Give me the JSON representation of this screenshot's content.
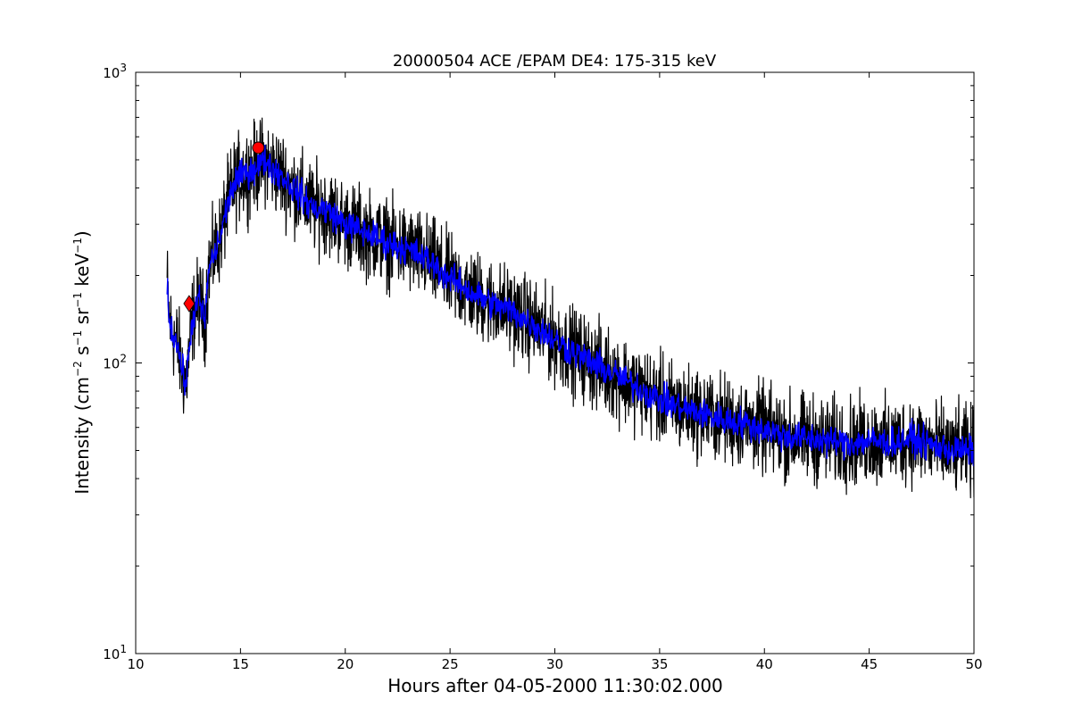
{
  "chart_data": {
    "type": "line",
    "title": "20000504 ACE /EPAM DE4: 175-315 keV",
    "xlabel": "Hours after 04-05-2000 11:30:02.000",
    "ylabel": {
      "prefix": "Intensity (cm",
      "exp1": "−2",
      "s": " s",
      "exp2": "−1",
      "sr": " sr",
      "exp3": "−1",
      "kev": " keV",
      "exp4": "−1",
      "suffix": ")"
    },
    "xlim": [
      10,
      50
    ],
    "ylim": [
      10,
      1000
    ],
    "yscale": "log",
    "grid": false,
    "x_ticks": [
      "10",
      "15",
      "20",
      "25",
      "30",
      "35",
      "40",
      "45",
      "50"
    ],
    "y_ticks": [
      {
        "base": "10",
        "exp": "1"
      },
      {
        "base": "10",
        "exp": "2"
      },
      {
        "base": "10",
        "exp": "3"
      }
    ],
    "series": [
      {
        "color": "#000000",
        "style": "raw, noisy",
        "x": [
          11.5,
          11.6,
          11.8,
          12.0,
          12.2,
          12.4,
          12.7,
          13.0,
          13.3,
          13.5,
          13.8,
          14.0,
          14.3,
          14.6,
          15.0,
          15.5,
          15.9,
          16.2,
          16.5,
          17.0,
          17.5,
          18.0,
          18.5,
          19.0,
          19.5,
          20.0,
          21.0,
          22.0,
          23.0,
          24.0,
          25.0,
          26.0,
          27.0,
          28.0,
          29.0,
          30.0,
          31.0,
          32.0,
          33.0,
          34.0,
          35.0,
          36.0,
          37.0,
          38.0,
          39.0,
          40.0,
          41.0,
          42.0,
          43.0,
          44.0,
          45.0,
          46.0,
          47.0,
          48.0,
          49.0,
          50.0
        ],
        "y": [
          190,
          140,
          125,
          115,
          95,
          85,
          140,
          165,
          140,
          215,
          240,
          265,
          330,
          400,
          440,
          460,
          480,
          500,
          470,
          440,
          400,
          370,
          340,
          340,
          320,
          300,
          280,
          260,
          245,
          225,
          195,
          175,
          160,
          150,
          135,
          120,
          108,
          98,
          90,
          82,
          75,
          70,
          67,
          64,
          62,
          59,
          56,
          55,
          54,
          53,
          54,
          53,
          55,
          52,
          50,
          50
        ],
        "noise": 0.17
      },
      {
        "color": "#0000ff",
        "style": "smoothed",
        "x": [
          11.5,
          11.6,
          11.8,
          12.0,
          12.2,
          12.4,
          12.7,
          13.0,
          13.3,
          13.5,
          13.8,
          14.0,
          14.3,
          14.6,
          15.0,
          15.5,
          15.9,
          16.2,
          16.5,
          17.0,
          17.5,
          18.0,
          18.5,
          19.0,
          19.5,
          20.0,
          21.0,
          22.0,
          23.0,
          24.0,
          25.0,
          26.0,
          27.0,
          28.0,
          29.0,
          30.0,
          31.0,
          32.0,
          33.0,
          34.0,
          35.0,
          36.0,
          37.0,
          38.0,
          39.0,
          40.0,
          41.0,
          42.0,
          43.0,
          44.0,
          45.0,
          46.0,
          47.0,
          48.0,
          49.0,
          50.0
        ],
        "y": [
          190,
          140,
          125,
          115,
          95,
          85,
          140,
          165,
          140,
          215,
          240,
          265,
          330,
          400,
          440,
          460,
          480,
          500,
          470,
          440,
          400,
          370,
          340,
          340,
          320,
          300,
          280,
          260,
          245,
          225,
          195,
          175,
          160,
          150,
          135,
          120,
          108,
          98,
          90,
          82,
          75,
          70,
          67,
          64,
          62,
          59,
          56,
          55,
          54,
          53,
          54,
          53,
          55,
          52,
          50,
          50
        ],
        "noise": 0.06
      }
    ],
    "markers": [
      {
        "shape": "diamond",
        "color": "#ff0000",
        "x": 12.55,
        "y": 160
      },
      {
        "shape": "circle",
        "color": "#ff0000",
        "x": 15.85,
        "y": 550
      }
    ]
  }
}
